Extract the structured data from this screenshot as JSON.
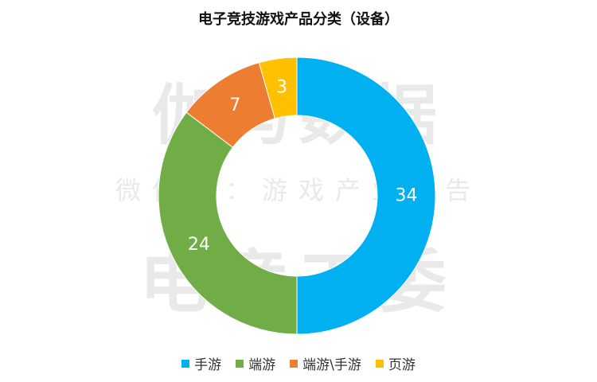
{
  "watermark": {
    "line1": "伽马数据",
    "line2": "微信号：游戏产业报告",
    "line3": "电竞工委"
  },
  "chart_data": {
    "type": "pie",
    "donut": true,
    "title": "电子竞技游戏产品分类（设备）",
    "categories": [
      "手游",
      "端游",
      "端游\\手游",
      "页游"
    ],
    "values": [
      34,
      24,
      7,
      3
    ],
    "colors": [
      "#00b0f0",
      "#70ad47",
      "#ed7d31",
      "#ffc000"
    ],
    "legend_position": "bottom"
  }
}
